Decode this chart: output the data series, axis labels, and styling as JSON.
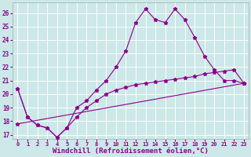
{
  "background_color": "#cce8e8",
  "grid_color": "#ffffff",
  "line_color": "#8b008b",
  "marker": "*",
  "marker_size": 3.5,
  "xlabel": "Windchill (Refroidissement éolien,°C)",
  "xlabel_fontsize": 6.5,
  "xtick_fontsize": 5,
  "ytick_fontsize": 5.5,
  "xlim": [
    -0.5,
    23.5
  ],
  "ylim": [
    16.7,
    26.8
  ],
  "xticks": [
    0,
    1,
    2,
    3,
    4,
    5,
    6,
    7,
    8,
    9,
    10,
    11,
    12,
    13,
    14,
    15,
    16,
    17,
    18,
    19,
    20,
    21,
    22,
    23
  ],
  "yticks": [
    17,
    18,
    19,
    20,
    21,
    22,
    23,
    24,
    25,
    26
  ],
  "curve1_x": [
    0,
    1,
    2,
    3,
    4,
    5,
    6,
    7,
    8,
    9,
    10,
    11,
    12,
    13,
    14,
    15,
    16,
    17,
    18,
    19,
    20,
    21,
    22,
    23
  ],
  "curve1_y": [
    20.4,
    18.3,
    17.7,
    17.5,
    16.8,
    17.5,
    19.0,
    19.5,
    20.3,
    21.0,
    22.0,
    23.2,
    25.3,
    26.3,
    25.5,
    25.3,
    26.3,
    25.5,
    24.2,
    22.8,
    21.8,
    21.0,
    21.0,
    20.8
  ],
  "curve2_x": [
    0,
    1,
    2,
    3,
    4,
    5,
    6,
    7,
    8,
    9,
    10,
    11,
    12,
    13,
    14,
    15,
    16,
    17,
    18,
    19,
    20,
    21,
    22,
    23
  ],
  "curve2_y": [
    20.4,
    18.3,
    17.7,
    17.5,
    16.8,
    17.5,
    18.3,
    19.0,
    19.5,
    20.0,
    20.3,
    20.5,
    20.7,
    20.8,
    20.9,
    21.0,
    21.1,
    21.2,
    21.3,
    21.5,
    21.6,
    21.7,
    21.8,
    20.8
  ],
  "curve3_x": [
    0,
    23
  ],
  "curve3_y": [
    17.8,
    20.8
  ]
}
